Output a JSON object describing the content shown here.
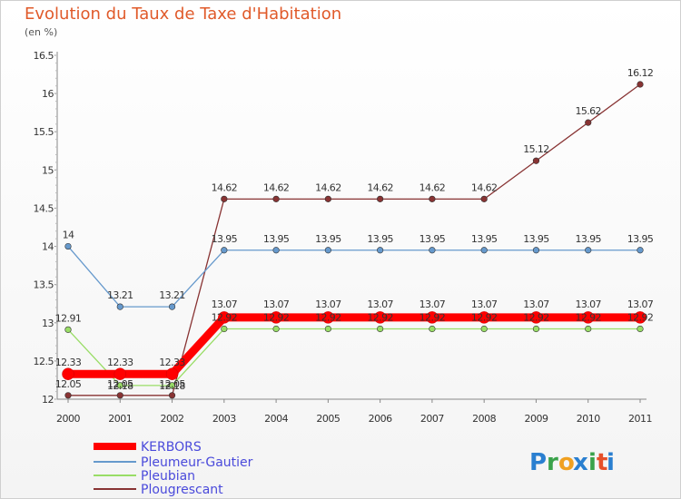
{
  "title": "Evolution du Taux de Taxe d'Habitation",
  "subtitle": "(en %)",
  "brand": {
    "letters": [
      "P",
      "r",
      "o",
      "x",
      "i",
      "t",
      "i"
    ],
    "colors": [
      "#2a7fd0",
      "#3aa24a",
      "#f0a020",
      "#2a7fd0",
      "#3aa24a",
      "#e6502a",
      "#2a7fd0"
    ]
  },
  "chart_data": {
    "type": "line",
    "x": [
      "2000",
      "2001",
      "2002",
      "2003",
      "2004",
      "2005",
      "2006",
      "2007",
      "2008",
      "2009",
      "2010",
      "2011"
    ],
    "ylim": [
      12,
      16.5
    ],
    "yticks": [
      "12",
      "12.5",
      "13",
      "13.5",
      "14",
      "14.5",
      "15",
      "15.5",
      "16",
      "16.5"
    ],
    "legend_position": "bottom-left",
    "series": [
      {
        "name": "KERBORS",
        "color": "#ff0000",
        "values": [
          12.33,
          12.33,
          12.33,
          13.07,
          13.07,
          13.07,
          13.07,
          13.07,
          13.07,
          13.07,
          13.07,
          13.07
        ],
        "labels": [
          "12.33",
          "12.33",
          "12.33",
          "13.07",
          "13.07",
          "13.07",
          "13.07",
          "13.07",
          "13.07",
          "13.07",
          "13.07",
          "13.07"
        ]
      },
      {
        "name": "Pleumeur-Gautier",
        "color": "#6699cc",
        "values": [
          14,
          13.21,
          13.21,
          13.95,
          13.95,
          13.95,
          13.95,
          13.95,
          13.95,
          13.95,
          13.95,
          13.95
        ],
        "labels": [
          "14",
          "13.21",
          "13.21",
          "13.95",
          "13.95",
          "13.95",
          "13.95",
          "13.95",
          "13.95",
          "13.95",
          "13.95",
          "13.95"
        ]
      },
      {
        "name": "Pleubian",
        "color": "#99dd66",
        "values": [
          12.91,
          12.18,
          12.18,
          12.92,
          12.92,
          12.92,
          12.92,
          12.92,
          12.92,
          12.92,
          12.92,
          12.92
        ],
        "labels": [
          "12.91",
          "12.18",
          "12.18",
          "12.92",
          "12.92",
          "12.92",
          "12.92",
          "12.92",
          "12.92",
          "12.92",
          "12.92",
          "12.92"
        ]
      },
      {
        "name": "Plougrescant",
        "color": "#883333",
        "values": [
          12.05,
          12.05,
          12.05,
          14.62,
          14.62,
          14.62,
          14.62,
          14.62,
          14.62,
          15.12,
          15.62,
          16.12
        ],
        "labels": [
          "12.05",
          "12.05",
          "12.05",
          "14.62",
          "14.62",
          "14.62",
          "14.62",
          "14.62",
          "14.62",
          "15.12",
          "15.62",
          "16.12"
        ]
      }
    ]
  }
}
